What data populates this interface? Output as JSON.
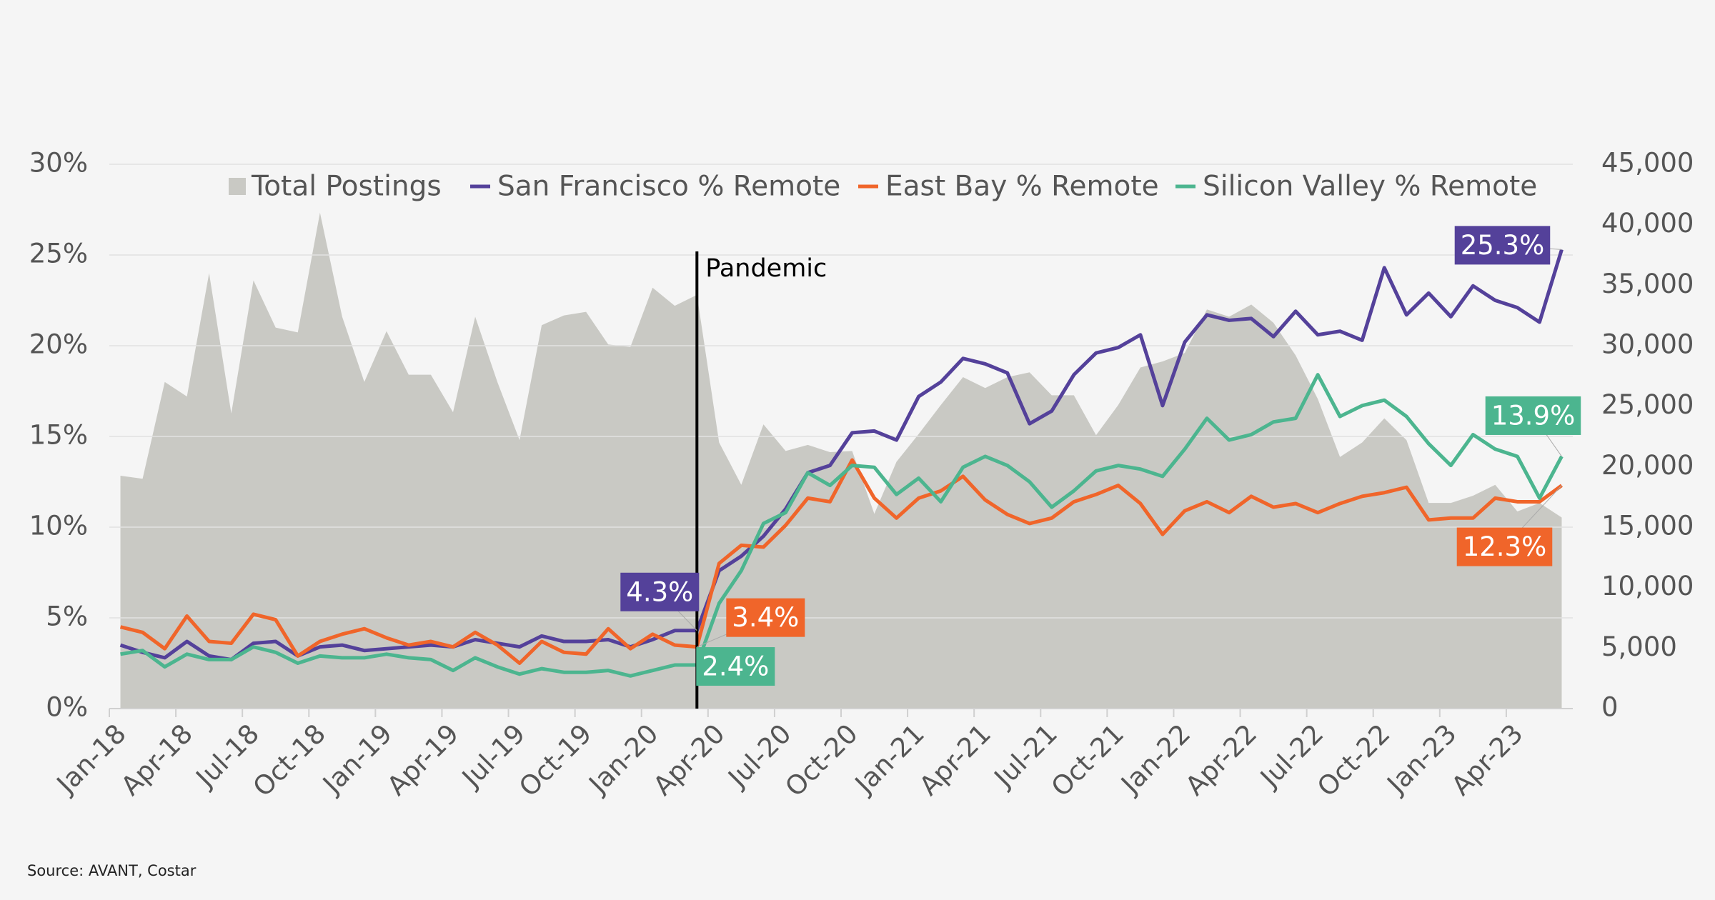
{
  "chart_data": {
    "type": "line",
    "categories": [
      "Jan-18",
      null,
      null,
      "Apr-18",
      null,
      null,
      "Jul-18",
      null,
      null,
      "Oct-18",
      null,
      null,
      "Jan-19",
      null,
      null,
      "Apr-19",
      null,
      null,
      "Jul-19",
      null,
      null,
      "Oct-19",
      null,
      null,
      "Jan-20",
      null,
      null,
      "Apr-20",
      null,
      null,
      "Jul-20",
      null,
      null,
      "Oct-20",
      null,
      null,
      "Jan-21",
      null,
      null,
      "Apr-21",
      null,
      null,
      "Jul-21",
      null,
      null,
      "Oct-21",
      null,
      null,
      "Jan-22",
      null,
      null,
      "Apr-22",
      null,
      null,
      "Jul-22",
      null,
      null,
      "Oct-22",
      null,
      null,
      "Jan-23",
      null,
      null,
      "Apr-23",
      null,
      null
    ],
    "series": [
      {
        "name": "Total Postings",
        "type": "area",
        "axis": "y2",
        "color": "#c9c9c4",
        "values": [
          19250,
          19000,
          27000,
          25800,
          36000,
          24400,
          35400,
          31500,
          31100,
          41000,
          32400,
          27000,
          31200,
          27600,
          27600,
          24500,
          32400,
          27000,
          22200,
          31700,
          32500,
          32800,
          30100,
          29900,
          34800,
          33300,
          34200,
          22000,
          18500,
          23500,
          21300,
          21800,
          21200,
          21300,
          16100,
          20400,
          22700,
          25100,
          27400,
          26500,
          27400,
          27800,
          25900,
          25900,
          22600,
          25100,
          28200,
          28700,
          29400,
          33000,
          32400,
          33400,
          31900,
          29200,
          25600,
          20800,
          22000,
          24000,
          22200,
          17000,
          17000,
          17600,
          18500,
          16300,
          17000,
          15800
        ]
      },
      {
        "name": "San Francisco % Remote",
        "color": "#54419a",
        "values": [
          3.5,
          3.1,
          2.8,
          3.7,
          2.9,
          2.7,
          3.6,
          3.7,
          2.9,
          3.4,
          3.5,
          3.2,
          3.3,
          3.4,
          3.5,
          3.4,
          3.8,
          3.6,
          3.4,
          4.0,
          3.7,
          3.7,
          3.8,
          3.4,
          3.8,
          4.3,
          4.3,
          7.6,
          8.4,
          9.5,
          11.0,
          13.0,
          13.4,
          15.2,
          15.3,
          14.8,
          17.2,
          18.0,
          19.3,
          19.0,
          18.5,
          15.7,
          16.4,
          18.4,
          19.6,
          19.9,
          20.6,
          16.7,
          20.2,
          21.7,
          21.4,
          21.5,
          20.5,
          21.9,
          20.6,
          20.8,
          20.3,
          24.3,
          21.7,
          22.9,
          21.6,
          23.3,
          22.5,
          22.1,
          21.3,
          25.3
        ],
        "value_labels": [
          null,
          null,
          null,
          null,
          null,
          null,
          null,
          null,
          null,
          null,
          null,
          null,
          null,
          null,
          null,
          null,
          null,
          null,
          null,
          null,
          null,
          null,
          null,
          null,
          null,
          null,
          "4.3%",
          null,
          null,
          null,
          null,
          null,
          null,
          null,
          null,
          null,
          null,
          null,
          null,
          null,
          null,
          null,
          null,
          null,
          null,
          null,
          null,
          null,
          null,
          null,
          null,
          null,
          null,
          null,
          null,
          null,
          null,
          null,
          null,
          null,
          null,
          null,
          null,
          null,
          null,
          "25.3%"
        ]
      },
      {
        "name": "East Bay % Remote",
        "color": "#f0652a",
        "values": [
          4.5,
          4.2,
          3.3,
          5.1,
          3.7,
          3.6,
          5.2,
          4.9,
          2.9,
          3.7,
          4.1,
          4.4,
          3.9,
          3.5,
          3.7,
          3.4,
          4.2,
          3.5,
          2.5,
          3.7,
          3.1,
          3.0,
          4.4,
          3.3,
          4.1,
          3.5,
          3.4,
          8.0,
          9.0,
          8.9,
          10.1,
          11.6,
          11.4,
          13.7,
          11.6,
          10.5,
          11.6,
          12.0,
          12.8,
          11.5,
          10.7,
          10.2,
          10.5,
          11.4,
          11.8,
          12.3,
          11.3,
          9.6,
          10.9,
          11.4,
          10.8,
          11.7,
          11.1,
          11.3,
          10.8,
          11.3,
          11.7,
          11.9,
          12.2,
          10.4,
          10.5,
          10.5,
          11.6,
          11.4,
          11.4,
          12.3
        ],
        "value_labels": [
          null,
          null,
          null,
          null,
          null,
          null,
          null,
          null,
          null,
          null,
          null,
          null,
          null,
          null,
          null,
          null,
          null,
          null,
          null,
          null,
          null,
          null,
          null,
          null,
          null,
          null,
          "3.4%",
          null,
          null,
          null,
          null,
          null,
          null,
          null,
          null,
          null,
          null,
          null,
          null,
          null,
          null,
          null,
          null,
          null,
          null,
          null,
          null,
          null,
          null,
          null,
          null,
          null,
          null,
          null,
          null,
          null,
          null,
          null,
          null,
          null,
          null,
          null,
          null,
          null,
          null,
          "12.3%"
        ]
      },
      {
        "name": "Silicon Valley % Remote",
        "color": "#4cb58f",
        "values": [
          3.0,
          3.2,
          2.3,
          3.0,
          2.7,
          2.7,
          3.4,
          3.1,
          2.5,
          2.9,
          2.8,
          2.8,
          3.0,
          2.8,
          2.7,
          2.1,
          2.8,
          2.3,
          1.9,
          2.2,
          2.0,
          2.0,
          2.1,
          1.8,
          2.1,
          2.4,
          2.4,
          5.8,
          7.6,
          10.2,
          10.8,
          13.0,
          12.3,
          13.4,
          13.3,
          11.8,
          12.7,
          11.4,
          13.3,
          13.9,
          13.4,
          12.5,
          11.1,
          12.0,
          13.1,
          13.4,
          13.2,
          12.8,
          14.3,
          16.0,
          14.8,
          15.1,
          15.8,
          16.0,
          18.4,
          16.1,
          16.7,
          17.0,
          16.1,
          14.6,
          13.4,
          15.1,
          14.3,
          13.9,
          11.6,
          13.9
        ],
        "value_labels": [
          null,
          null,
          null,
          null,
          null,
          null,
          null,
          null,
          null,
          null,
          null,
          null,
          null,
          null,
          null,
          null,
          null,
          null,
          null,
          null,
          null,
          null,
          null,
          null,
          null,
          null,
          "2.4%",
          null,
          null,
          null,
          null,
          null,
          null,
          null,
          null,
          null,
          null,
          null,
          null,
          null,
          null,
          null,
          null,
          null,
          null,
          null,
          null,
          null,
          null,
          null,
          null,
          null,
          null,
          null,
          null,
          null,
          null,
          null,
          null,
          null,
          null,
          null,
          null,
          null,
          null,
          "13.9%"
        ]
      }
    ],
    "ylim": [
      0,
      30
    ],
    "yticks": [
      {
        "value": 0,
        "label": "0%"
      },
      {
        "value": 5,
        "label": "5%"
      },
      {
        "value": 10,
        "label": "10%"
      },
      {
        "value": 15,
        "label": "15%"
      },
      {
        "value": 20,
        "label": "20%"
      },
      {
        "value": 25,
        "label": "25%"
      },
      {
        "value": 30,
        "label": "30%"
      }
    ],
    "y2lim": [
      0,
      45000
    ],
    "y2ticks": [
      0,
      {
        "value": 5000,
        "label": "5,000"
      },
      {
        "value": 10000,
        "label": "10,000"
      },
      {
        "value": 15000,
        "label": "15,000"
      },
      {
        "value": 20000,
        "label": "20,000"
      },
      {
        "value": 25000,
        "label": "25,000"
      },
      {
        "value": 30000,
        "label": "30,000"
      },
      {
        "value": 35000,
        "label": "35,000"
      },
      {
        "value": 40000,
        "label": "40,000"
      },
      {
        "value": 45000,
        "label": "45,000"
      }
    ],
    "grid": true,
    "legend": "top",
    "annotation": {
      "text": "Pandemic",
      "category_index": 26
    },
    "source": "Source: AVANT, Costar"
  }
}
